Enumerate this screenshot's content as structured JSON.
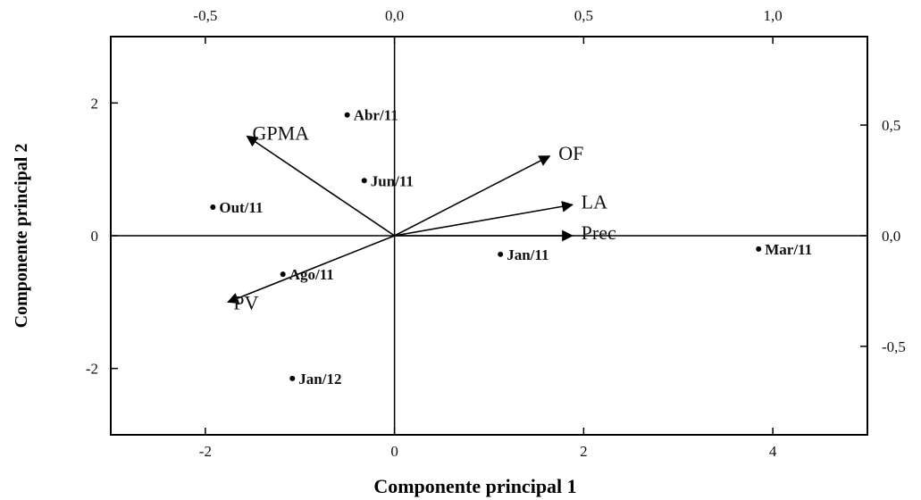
{
  "chart_data": {
    "type": "scatter",
    "subtype": "pca-biplot",
    "xlabel": "Componente principal 1",
    "ylabel": "Componente principal 2",
    "xlim": [
      -3,
      5
    ],
    "ylim": [
      -3,
      3
    ],
    "xticks": [
      -2,
      0,
      2,
      4
    ],
    "yticks": [
      -2,
      0,
      2
    ],
    "x_tick_labels": [
      "-2",
      "0",
      "2",
      "4"
    ],
    "y_tick_labels": [
      "-2",
      "0",
      "2"
    ],
    "top_axis": {
      "lim": [
        -0.75,
        1.25
      ],
      "ticks": [
        -0.5,
        0.0,
        0.5,
        1.0
      ],
      "tick_labels": [
        "-0,5",
        "0,0",
        "0,5",
        "1,0"
      ]
    },
    "right_axis": {
      "lim": [
        -0.9,
        0.9
      ],
      "ticks": [
        -0.5,
        0.0,
        0.5
      ],
      "tick_labels": [
        "-0,5",
        "0,0",
        "0,5"
      ]
    },
    "grid": false,
    "zero_lines": true,
    "scores": [
      {
        "label": "Abr/11",
        "x": -0.5,
        "y": 1.82
      },
      {
        "label": "Jun/11",
        "x": -0.32,
        "y": 0.83
      },
      {
        "label": "Out/11",
        "x": -1.92,
        "y": 0.43
      },
      {
        "label": "Jan/11",
        "x": 1.12,
        "y": -0.28
      },
      {
        "label": "Mar/11",
        "x": 3.85,
        "y": -0.2
      },
      {
        "label": "Ago/11",
        "x": -1.18,
        "y": -0.58
      },
      {
        "label": "Jan/12",
        "x": -1.08,
        "y": -2.15
      }
    ],
    "loadings": [
      {
        "label": "GPMA",
        "x": -0.39,
        "y": 0.45
      },
      {
        "label": "OF",
        "x": 0.41,
        "y": 0.36
      },
      {
        "label": "LA",
        "x": 0.47,
        "y": 0.14
      },
      {
        "label": "Prec",
        "x": 0.47,
        "y": 0.0
      },
      {
        "label": "PV",
        "x": -0.44,
        "y": -0.3
      }
    ]
  }
}
